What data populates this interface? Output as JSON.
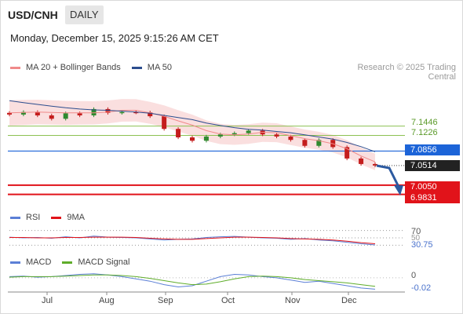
{
  "header": {
    "pair": "USD/CNH",
    "period": "DAILY",
    "datetime": "Monday, December 15, 2025 9:15:26 AM CET"
  },
  "legend": {
    "ma20_bb": "MA 20 + Bollinger Bands",
    "ma50": "MA 50",
    "credit": "Research © 2025 Trading Central"
  },
  "levels": {
    "green_upper": "7.1446",
    "green_lower": "7.1226",
    "blue_line": "7.0856",
    "last_price": "7.0514",
    "red_upper": "7.0050",
    "red_lower": "6.9831"
  },
  "rsi_panel": {
    "rsi_label": "RSI",
    "ma_label": "9MA",
    "level_high": "70",
    "level_mid": "50",
    "current": "30.75"
  },
  "macd_panel": {
    "macd_label": "MACD",
    "signal_label": "MACD Signal",
    "zero": "0",
    "current": "-0.02"
  },
  "x_axis": [
    "Jul",
    "Aug",
    "Sep",
    "Oct",
    "Nov",
    "Dec"
  ],
  "colors": {
    "bollinger": "#f7c9c9",
    "ma20": "#f08a8a",
    "ma50": "#2c4d8e",
    "resistance": "#8cc152",
    "pivot": "#1c64d8",
    "support": "#e1131a",
    "candle_up": "#2f8a2f",
    "candle_down": "#c41d1d",
    "rsi": "#5b7fd6",
    "macd_signal": "#5fad2a"
  },
  "chart_data": {
    "type": "candlestick",
    "x": [
      "2025-06-16",
      "2025-06-23",
      "2025-06-30",
      "2025-07-07",
      "2025-07-14",
      "2025-07-21",
      "2025-07-28",
      "2025-08-04",
      "2025-08-11",
      "2025-08-18",
      "2025-08-25",
      "2025-09-01",
      "2025-09-08",
      "2025-09-15",
      "2025-09-22",
      "2025-09-29",
      "2025-10-06",
      "2025-10-13",
      "2025-10-20",
      "2025-10-27",
      "2025-11-03",
      "2025-11-10",
      "2025-11-17",
      "2025-11-24",
      "2025-12-01",
      "2025-12-08",
      "2025-12-15"
    ],
    "series": [
      {
        "name": "MA 20 + Bollinger Bands",
        "values": [
          7.176,
          7.177,
          7.178,
          7.177,
          7.176,
          7.176,
          7.176,
          7.178,
          7.182,
          7.182,
          7.176,
          7.168,
          7.157,
          7.147,
          7.134,
          7.126,
          7.124,
          7.126,
          7.13,
          7.129,
          7.122,
          7.115,
          7.11,
          7.103,
          7.091,
          7.074,
          7.06
        ]
      },
      {
        "name": "MA 50",
        "values": [
          7.205,
          7.2,
          7.196,
          7.192,
          7.188,
          7.185,
          7.183,
          7.182,
          7.18,
          7.178,
          7.175,
          7.17,
          7.165,
          7.16,
          7.152,
          7.146,
          7.141,
          7.137,
          7.135,
          7.132,
          7.129,
          7.124,
          7.119,
          7.114,
          7.106,
          7.096,
          7.084
        ]
      }
    ],
    "close": [
      7.172,
      7.178,
      7.17,
      7.162,
      7.175,
      7.17,
      7.185,
      7.176,
      7.178,
      7.177,
      7.168,
      7.138,
      7.118,
      7.11,
      7.12,
      7.125,
      7.128,
      7.134,
      7.125,
      7.12,
      7.112,
      7.098,
      7.112,
      7.095,
      7.068,
      7.055,
      7.0514
    ],
    "rsi": [
      52,
      50,
      51,
      49,
      53,
      50,
      55,
      52,
      51,
      50,
      47,
      44,
      46,
      47,
      51,
      53,
      54,
      52,
      50,
      49,
      46,
      48,
      44,
      42,
      38,
      34,
      30.75
    ],
    "rsi_9ma": [
      51,
      51,
      50,
      50,
      51,
      51,
      52,
      52,
      52,
      51,
      49,
      47,
      46,
      46,
      48,
      50,
      52,
      52,
      51,
      50,
      48,
      47,
      46,
      44,
      41,
      37,
      34
    ],
    "macd": [
      0.002,
      0.003,
      0.001,
      0.002,
      0.004,
      0.006,
      0.007,
      0.005,
      0.002,
      -0.002,
      -0.006,
      -0.012,
      -0.016,
      -0.014,
      -0.006,
      0.002,
      0.006,
      0.005,
      0.002,
      0.0,
      -0.004,
      -0.008,
      -0.006,
      -0.01,
      -0.014,
      -0.018,
      -0.02
    ],
    "macd_signal": [
      0.001,
      0.002,
      0.002,
      0.002,
      0.003,
      0.004,
      0.005,
      0.005,
      0.004,
      0.002,
      -0.001,
      -0.005,
      -0.009,
      -0.012,
      -0.011,
      -0.007,
      -0.002,
      0.002,
      0.003,
      0.002,
      0.0,
      -0.003,
      -0.005,
      -0.007,
      -0.009,
      -0.012,
      -0.015
    ],
    "ylim": [
      6.975,
      7.235
    ],
    "horizontal_lines": [
      {
        "value": 7.1446,
        "label": "7.1446"
      },
      {
        "value": 7.1226,
        "label": "7.1226"
      },
      {
        "value": 7.0856,
        "label": "7.0856"
      },
      {
        "value": 7.005,
        "label": "7.0050"
      },
      {
        "value": 6.9831,
        "label": "6.9831"
      }
    ],
    "xlabel": "",
    "ylabel": ""
  }
}
